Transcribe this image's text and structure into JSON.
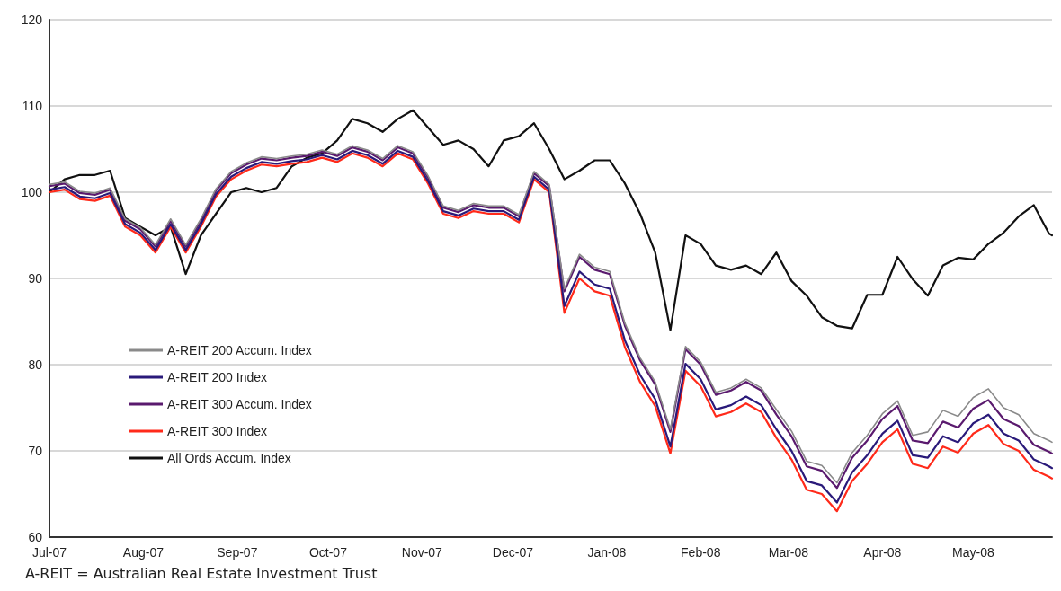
{
  "chart_data": {
    "type": "line",
    "annotations": [
      "A-REIT = Australian Real Estate Investment Trust"
    ],
    "x": [
      "2007-07-01",
      "2007-07-06",
      "2007-07-11",
      "2007-07-16",
      "2007-07-21",
      "2007-07-26",
      "2007-07-31",
      "2007-08-05",
      "2007-08-10",
      "2007-08-15",
      "2007-08-20",
      "2007-08-25",
      "2007-08-30",
      "2007-09-04",
      "2007-09-09",
      "2007-09-14",
      "2007-09-19",
      "2007-09-24",
      "2007-09-29",
      "2007-10-04",
      "2007-10-09",
      "2007-10-14",
      "2007-10-19",
      "2007-10-24",
      "2007-10-29",
      "2007-11-03",
      "2007-11-08",
      "2007-11-13",
      "2007-11-18",
      "2007-11-23",
      "2007-11-28",
      "2007-12-03",
      "2007-12-08",
      "2007-12-13",
      "2007-12-18",
      "2007-12-23",
      "2007-12-28",
      "2008-01-02",
      "2008-01-07",
      "2008-01-12",
      "2008-01-17",
      "2008-01-22",
      "2008-01-27",
      "2008-02-01",
      "2008-02-06",
      "2008-02-11",
      "2008-02-16",
      "2008-02-21",
      "2008-02-26",
      "2008-03-02",
      "2008-03-07",
      "2008-03-12",
      "2008-03-17",
      "2008-03-22",
      "2008-03-27",
      "2008-04-01",
      "2008-04-06",
      "2008-04-11",
      "2008-04-16",
      "2008-04-21",
      "2008-04-26",
      "2008-05-01",
      "2008-05-06",
      "2008-05-11",
      "2008-05-16",
      "2008-05-21",
      "2008-05-26",
      "2008-05-27"
    ],
    "series": [
      {
        "name": "A-REIT 200 Accum. Index",
        "color": "#8a8a8a",
        "values": [
          100.9,
          101.2,
          100.1,
          99.9,
          100.5,
          96.9,
          95.9,
          93.9,
          96.9,
          93.9,
          96.9,
          100.4,
          102.4,
          103.4,
          104.1,
          103.9,
          104.2,
          104.4,
          104.9,
          104.4,
          105.4,
          104.9,
          103.9,
          105.4,
          104.7,
          101.9,
          98.4,
          97.9,
          98.7,
          98.4,
          98.4,
          97.4,
          102.4,
          100.9,
          88.8,
          92.8,
          91.3,
          90.8,
          84.8,
          80.8,
          78,
          72.5,
          82.1,
          80.3,
          76.8,
          77.3,
          78.3,
          77.3,
          74.8,
          72.3,
          68.8,
          68.3,
          66.3,
          69.8,
          71.8,
          74.3,
          75.8,
          71.8,
          72.2,
          74.7,
          74,
          76.2,
          77.2,
          75,
          74.2,
          72,
          71.2,
          71
        ]
      },
      {
        "name": "A-REIT 200 Index",
        "color": "#2a1a7a",
        "values": [
          100.3,
          100.6,
          99.5,
          99.3,
          99.9,
          96.3,
          95.3,
          93.3,
          96.3,
          93.3,
          96.3,
          99.8,
          101.8,
          102.8,
          103.5,
          103.3,
          103.6,
          103.8,
          104.3,
          103.8,
          104.8,
          104.3,
          103.3,
          104.8,
          104.1,
          101.3,
          97.8,
          97.3,
          98.1,
          97.8,
          97.8,
          96.8,
          101.8,
          100.3,
          86.8,
          90.8,
          89.3,
          88.8,
          82.8,
          78.8,
          76,
          70.5,
          80.1,
          78.3,
          74.8,
          75.3,
          76.3,
          75.3,
          72.5,
          70,
          66.5,
          66,
          64,
          67.5,
          69.5,
          72,
          73.5,
          69.5,
          69.2,
          71.7,
          71,
          73.2,
          74.2,
          72,
          71.2,
          69,
          68.2,
          68
        ]
      },
      {
        "name": "A-REIT 300 Accum. Index",
        "color": "#5a1a6e",
        "values": [
          100.7,
          101,
          99.9,
          99.7,
          100.3,
          96.7,
          95.7,
          93.7,
          96.7,
          93.7,
          96.7,
          100.2,
          102.2,
          103.2,
          103.9,
          103.7,
          104,
          104.2,
          104.7,
          104.2,
          105.2,
          104.7,
          103.7,
          105.2,
          104.5,
          101.7,
          98.2,
          97.7,
          98.5,
          98.2,
          98.2,
          97.2,
          102.2,
          100.7,
          88.5,
          92.5,
          91,
          90.5,
          84.5,
          80.5,
          77.7,
          72.2,
          81.8,
          80,
          76.5,
          77,
          78,
          77,
          74.2,
          71.7,
          68.2,
          67.7,
          65.7,
          69.2,
          71.2,
          73.7,
          75.2,
          71.2,
          70.9,
          73.4,
          72.7,
          74.9,
          75.9,
          73.7,
          72.9,
          70.7,
          69.9,
          69.7
        ]
      },
      {
        "name": "A-REIT 300 Index",
        "color": "#ff2a1a",
        "values": [
          100,
          100.3,
          99.2,
          99,
          99.6,
          96,
          95,
          93,
          96,
          93,
          96,
          99.5,
          101.5,
          102.5,
          103.2,
          103,
          103.3,
          103.5,
          104,
          103.5,
          104.5,
          104,
          103,
          104.5,
          103.8,
          101,
          97.5,
          97,
          97.8,
          97.5,
          97.5,
          96.5,
          101.5,
          100,
          86,
          90,
          88.5,
          88,
          82,
          78,
          75.2,
          69.7,
          79.3,
          77.5,
          74,
          74.5,
          75.5,
          74.5,
          71.5,
          69,
          65.5,
          65,
          63,
          66.5,
          68.5,
          71,
          72.5,
          68.5,
          68,
          70.5,
          69.8,
          72,
          73,
          70.8,
          70,
          67.8,
          67,
          66.8
        ]
      },
      {
        "name": "All Ords Accum. Index",
        "color": "#111111",
        "values": [
          100,
          101.5,
          102,
          102,
          102.5,
          97,
          96,
          95,
          96,
          90.5,
          95,
          97.5,
          100,
          100.5,
          100,
          100.5,
          103,
          104,
          104.5,
          106,
          108.5,
          108,
          107,
          108.5,
          109.5,
          107.5,
          105.5,
          106,
          105,
          103,
          106,
          106.5,
          108,
          105,
          101.5,
          102.5,
          103.7,
          103.7,
          101,
          97.5,
          93,
          84,
          95,
          94,
          91.5,
          91,
          91.5,
          90.5,
          93,
          89.7,
          88,
          85.5,
          84.5,
          84.2,
          88.1,
          88.1,
          92.5,
          89.9,
          88,
          91.5,
          92.4,
          92.2,
          94,
          95.3,
          97.2,
          98.5,
          95.2,
          95
        ]
      }
    ],
    "xlim": [
      "2007-07-01",
      "2008-05-27"
    ],
    "xticks": [
      {
        "value": "2007-07-01",
        "label": "Jul-07"
      },
      {
        "value": "2007-08-01",
        "label": "Aug-07"
      },
      {
        "value": "2007-09-01",
        "label": "Sep-07"
      },
      {
        "value": "2007-10-01",
        "label": "Oct-07"
      },
      {
        "value": "2007-11-01",
        "label": "Nov-07"
      },
      {
        "value": "2007-12-01",
        "label": "Dec-07"
      },
      {
        "value": "2008-01-01",
        "label": "Jan-08"
      },
      {
        "value": "2008-02-01",
        "label": "Feb-08"
      },
      {
        "value": "2008-03-01",
        "label": "Mar-08"
      },
      {
        "value": "2008-04-01",
        "label": "Apr-08"
      },
      {
        "value": "2008-05-01",
        "label": "May-08"
      }
    ],
    "ylim": [
      60,
      120
    ],
    "yticks": [
      60,
      70,
      80,
      90,
      100,
      110,
      120
    ],
    "grid": "y",
    "legend": "left",
    "marker": "none",
    "line_style": "solid"
  }
}
